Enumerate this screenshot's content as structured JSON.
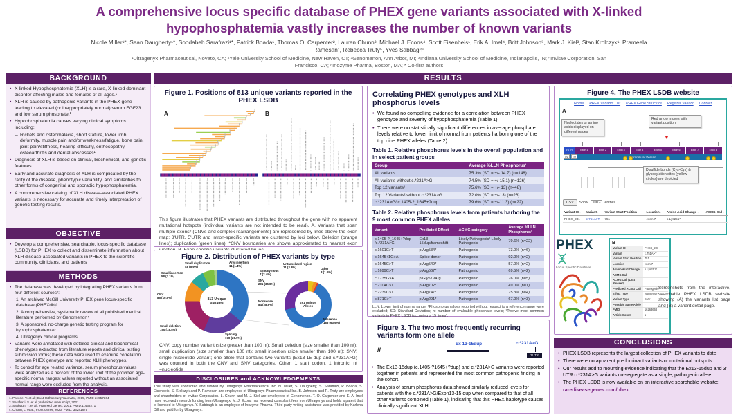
{
  "header": {
    "title": "A comprehensive locus specific database of PHEX gene variants associated with X-linked\nhypophosphatemia vastly increases the number of known variants",
    "authors": "Nicole Miller¹*, Sean Daugherty¹*, Soodabeh Sarafrazi¹*, Patrick Boada¹, Thomas O. Carpenter², Lauren Chunn³, Michael J. Econs⁴, Scott Eisenbeis¹, Erik A. Imel⁴, Britt Johnson⁵, Mark J. Kiel³, Stan Krolczyk¹, Prameela Ramesan¹, Rebecca Truty⁵, Yves Sabbagh⁶",
    "affiliations": "¹Ultragenyx Pharmaceutical, Novato, CA; ²Yale University School of Medicine, New Haven, CT; ³Genomenon, Ann Arbor, MI; ⁴Indiana University School of Medicine, Indianapolis, IN; ⁵Invitae Corporation, San Francisco, CA; ⁶Inozyme Pharma, Boston, MA; * Co-first authors"
  },
  "results_header": "RESULTS",
  "background": {
    "header": "BACKGROUND",
    "items": [
      {
        "style": "bullet",
        "text": "X-linked Hypophosphatemia (XLH) is a rare, X-linked dominant disorder affecting males and females of all ages.¹"
      },
      {
        "style": "bullet",
        "text": "XLH is caused by pathogenic variants in the PHEX gene leading to elevated (or inappropriately normal) serum FGF23 and low serum phosphate.¹"
      },
      {
        "style": "bullet",
        "text": "Hypophosphatemia causes varying clinical symptoms including:"
      },
      {
        "style": "dash",
        "text": "Rickets and osteomalacia, short stature, lower limb deformity, muscle pain and/or weakness/fatigue, bone pain, joint pain/stiffness, hearing difficulty, enthesopathy, osteoarthritis and dental abscesses¹"
      },
      {
        "style": "bullet",
        "text": "Diagnosis of XLH is based on clinical, biochemical, and genetic features."
      },
      {
        "style": "bullet",
        "text": "Early and accurate diagnosis of XLH is complicated by the rarity of the disease, phenotypic variability, and similarities to other forms of congenital and sporadic hypophosphatemia."
      },
      {
        "style": "bullet",
        "text": "A comprehensive catalog of XLH disease-associated PHEX variants is necessary for accurate and timely interpretation of genetic testing results."
      }
    ]
  },
  "objective": {
    "header": "OBJECTIVE",
    "items": [
      {
        "style": "bullet",
        "text": "Develop a comprehensive, searchable, locus-specific database (LSDB) for PHEX to collect and disseminate information about XLH disease-associated variants in PHEX to the scientific community, clinicians, and patients"
      }
    ]
  },
  "methods": {
    "header": "METHODS",
    "items": [
      {
        "style": "bullet",
        "text": "The database was developed by integrating PHEX variants from four different sources²:"
      },
      {
        "style": "num",
        "text": "1. An archived McGill University PHEX gene locus-specific database (PHEXdb)³"
      },
      {
        "style": "num",
        "text": "2. A comprehensive, systematic review of all published medical literature performed by Genomenon⁴"
      },
      {
        "style": "num",
        "text": "3. A sponsored, no-charge genetic testing program for hypophosphatemia⁵"
      },
      {
        "style": "num",
        "text": "4. Ultragenyx clinical programs"
      },
      {
        "style": "bullet",
        "text": "Variants were annotated with detailed clinical and biochemical phenotypes extracted from literature reports and clinical testing submission forms; these data were used to examine correlation between PHEX genotype and reported XLH phenotypes."
      },
      {
        "style": "bullet",
        "text": "To control for age related variance, serum phosphorus values were analyzed as a percent of the lower limit of the provided age-specific normal ranges; values reported without an associated normal range were excluded from the analysis."
      }
    ]
  },
  "references": {
    "header": "REFERENCES",
    "items": [
      {
        "style": "ref",
        "text": "1.  Pavone, V. et al.; EurJ OrthopSurgTraumatol, 2015, PMID 24957364"
      },
      {
        "style": "ref",
        "text": "2.  Sarafrazi, S. et al.; submitted manuscript, 2021."
      },
      {
        "style": "ref",
        "text": "3.  Sabbagh, Y. et al.; Hum Mol Genet., 2001, PMID:11468271"
      },
      {
        "style": "ref",
        "text": "4.  Chunn, L. et al.; Front Genet, 2020, PMID: 33281875"
      },
      {
        "style": "ref",
        "text": "5.  Rush, E. et al.; submitted manuscript 2021."
      }
    ]
  },
  "figure1": {
    "title": "Figure 1. Positions of 813 unique variants reported in the PHEX LSDB",
    "panel_a_label": "A",
    "panel_b_label": "B",
    "caption": "This figure illustrates that PHEX variants are distributed throughout the gene with no apparent mutational hotspots (individual variants are not intended to be read). A. Variants that span multiple exons* (CNVs and complex rearrangements) are represented by lines above the exon map; 3'UTR, 5'UTR and intron-specific variants are clustered by loci below. Deletion (orange lines); duplication (green lines). *CNV boundaries are shown approximated to nearest exon junction. B. Exon-specific variants clustered by loci."
  },
  "figure2": {
    "title": "Figure 2. Distribution of PHEX variants by type",
    "caption": "CNV: copy number variant (size greater than 100 nt); Small deletion (size smaller than 100 nt); small duplication (size smaller than 100 nt); small insertion (size smaller than 100 nt); SNV: single nucleotide variant; one allele that contains two variants (Ex13-15 dup and c.*231A>G) was counted in both the CNV and SNV categories. Other: 1 start codon, 1 intronic. nt =nucleotide"
  },
  "chart_data": [
    {
      "type": "pie",
      "title": "Distribution of PHEX variants by type",
      "center_label": "813 Unique\nVariants",
      "total": 813,
      "legend_position": "around",
      "slices": [
        {
          "label": "SNV",
          "value": 291,
          "pct": "35.8%",
          "color": "#2e75c3"
        },
        {
          "label": "Splicing",
          "value": 170,
          "pct": "20.9%",
          "color": "#5f3d9e"
        },
        {
          "label": "Small deletion",
          "value": 150,
          "pct": "18.4%",
          "color": "#9e2063"
        },
        {
          "label": "CNV",
          "value": 85,
          "pct": "10.5%",
          "color": "#f29322"
        },
        {
          "label": "Small insertion",
          "value": 58,
          "pct": "7.1%",
          "color": "#2aa8a0"
        },
        {
          "label": "Small duplication",
          "value": 48,
          "pct": "5.9%",
          "color": "#7dc242"
        },
        {
          "label": "Any insertion",
          "value": 11,
          "pct": "1.4%",
          "color": "#a8d08d"
        }
      ]
    },
    {
      "type": "pie",
      "title": "Coding effect of SNVs",
      "center_label": "291 Unique\nAlleles",
      "total": 291,
      "legend_position": "around",
      "slices": [
        {
          "label": "Untranslated region",
          "value": 11,
          "pct": "3.8%",
          "color": "#e8c21a"
        },
        {
          "label": "Synonymous",
          "value": 7,
          "pct": "2.4%",
          "color": "#f29322"
        },
        {
          "label": "Other",
          "value": 3,
          "pct": "1.0%",
          "color": "#d93a3a"
        },
        {
          "label": "Missense",
          "value": 186,
          "pct": "63.9%",
          "color": "#2e75c3"
        },
        {
          "label": "Nonsense",
          "value": 84,
          "pct": "28.9%",
          "color": "#6a2d9e"
        }
      ]
    }
  ],
  "correlating": {
    "title": "Correlating PHEX genotypes and XLH phosphorus levels",
    "bullets": [
      {
        "style": "bullet",
        "text": "We found no compelling evidence for a correlation between PHEX genotype and severity of hypophosphatemia (Table 1)."
      },
      {
        "style": "bullet",
        "text": "There were no statistically significant differences in average phosphate levels relative to lower limit of normal from patients harboring one of the top nine PHEX alleles (Table 2)."
      }
    ],
    "table1": {
      "title": "Table 1. Relative phosphorus levels in the overall population and in select patient groups",
      "headers": [
        "Group",
        "Average %LLN Phosphorus¹"
      ],
      "rows": [
        [
          "All variants",
          "75.3% (SD = +/- 14.7) (n=148)"
        ],
        [
          "All variants without c.*231A>G",
          "74.5% (SD = +/-15.1) (n=126)"
        ],
        [
          "Top 12 variants²",
          "75.6% (SD = +/- 13) (n=48)"
        ],
        [
          "Top 12 Variants² without c.*231A>G",
          "72.0% (SD = +/-13) (n=26)"
        ],
        [
          "c.*231A>G/ c.1405-?_1645+?dup",
          "79.6% (SD = +/-11.3) (n=22)"
        ]
      ]
    },
    "table2": {
      "title": "Table 2. Relative phosphorus levels from patients harboring the 9 most common PHEX alleles",
      "headers": [
        "Variant",
        "Predicted Effect",
        "ACMG category",
        "Average %LLN Phosphorus¹"
      ],
      "rows": [
        [
          "c.1405-?_1645+?dup /c.*231A>G",
          "Ex13-15dup/frameshift",
          "Likely Pathogenic/ Likely Pathogenic",
          "79.6% (n=22)"
        ],
        [
          "c.1601C>T",
          "p.Arg534*",
          "Pathogenic",
          "73.0% (n=6)"
        ],
        [
          "c.1645+1G>A",
          "Splice donor",
          "Pathogenic",
          "92.0% (n=2)"
        ],
        [
          "c.1645C>T",
          "p.Arg549*",
          "Pathogenic",
          "57.0% (n=2)"
        ],
        [
          "c.1699C>T",
          "p.Arg567*",
          "Pathogenic",
          "69.5% (n=2)"
        ],
        [
          "c.1735G>A",
          "p.Gly579Arg",
          "Pathogenic",
          "76.0% (n=5)"
        ],
        [
          "c.2104C>T",
          "p.Arg702*",
          "Pathogenic",
          "49.0% (n=1)"
        ],
        [
          "c.2239C>T",
          "p.Arg747*",
          "Pathogenic",
          "75.3% (n=4)"
        ],
        [
          "c.871C>T",
          "p.Arg291*",
          "Pathogenic",
          "67.0% (n=3)"
        ]
      ]
    },
    "footnote": "LLN: Lower limit of normal range; ¹Phosphorus values reported without respect to a reference range were excluded; SD: Standard Deviation; n: number of evaluable phosphate levels; ²Twelve most common variants in PHEX LSDB (occurring ≥ 15 times)."
  },
  "figure3": {
    "title": "Figure 3. The two most frequently recurring variants form one allele",
    "diagram": {
      "break_label": "//",
      "dup_label": "Ex 13-15dup",
      "snv_label": "c.*231A>G",
      "utr_label": "3'UTR"
    },
    "bullets": [
      {
        "style": "bullet",
        "text": "The Ex13-15dup (c.1405-?1645+?dup) and c.*231A>G variants were reported together in patients and represented the most common pathogenic finding in the cohort."
      },
      {
        "style": "bullet",
        "text": "Analysis of serum phosphorus data showed similarly reduced levels for patients with the c.*231A>G/Exon13-15 dup when compared to that of all other variants combined (Table 1), indicating that this PHEX haplotype causes clinically significant XLH."
      }
    ]
  },
  "figure4": {
    "title": "Figure 4. The PHEX LSDB website",
    "panel_a_label": "A",
    "panel_b_label": "B",
    "website": {
      "nav": [
        "Home",
        "PHEX Variants List",
        "PHEX Gene Structure",
        "Register Variant",
        "Contact"
      ],
      "callout_nucleotides": "Nucleotides or amino acids displayed on different pages",
      "callout_red_arrow": "Red arrow moves with variant position",
      "callout_disulfide": "Disulfide bonds (Cys-Cys) & glycosylation sites (yellow circles) are depicted",
      "utr5_label": "5'UTR",
      "exons": [
        "Exon 1",
        "Exon 2",
        "Exon 3",
        "Exon 4",
        "Exon 5",
        "Exon 6",
        "Exon 7",
        "Exon 8"
      ],
      "cyt_label": "Cyt",
      "tm_label": "TM",
      "domain_label": "Extracellular Domain",
      "csv_button": "CSV",
      "show_label": "Show",
      "entries_value": "100",
      "entries_label": "entries",
      "table": {
        "headers": [
          "Variant ID",
          "Variant",
          "Variant Start Position",
          "Location",
          "Amino Acid Change",
          "ACMG Call"
        ],
        "rows": [
          [
            "PHEX_231",
            "c.751A>T",
            "751",
            "exon 7",
            "p.Lys251*",
            "-"
          ]
        ]
      }
    },
    "logo": {
      "text": "PHEX",
      "subtext": "Locus Specific Database"
    },
    "detail": {
      "rows": [
        [
          "Variant ID",
          "PHEX_231"
        ],
        [
          "Variant",
          "c.751A>T"
        ],
        [
          "Variant Start Position",
          "751"
        ],
        [
          "Location",
          "exon 7"
        ],
        [
          "Amino Acid Change",
          "p.Lys251*"
        ],
        [
          "ACMG Call",
          "-"
        ],
        [
          "ACMG Call (Last Revised)",
          "-"
        ],
        [
          "Predicted ACMG Call",
          "Pathogenic"
        ],
        [
          "Effect Type",
          "Nonsense"
        ],
        [
          "Variant Type",
          "SNV"
        ],
        [
          "Possible Same Allele",
          "-"
        ],
        [
          "PMID",
          "16263668"
        ],
        [
          "Article Count",
          "1"
        ]
      ]
    },
    "caption": "Screenshots from the interactive, searchable PHEX LSDB website showing (A) the variants list page and (B) a variant detail page."
  },
  "conclusions": {
    "header": "CONCLUSIONS",
    "bullets": [
      {
        "style": "bullet",
        "text": "PHEX LSDB represents the largest collection of PHEX variants to date"
      },
      {
        "style": "bullet",
        "text": "There were no apparent predominant variants or mutational hotspots"
      },
      {
        "style": "bullet",
        "text": "Our results add to mounting evidence indicating that the Ex13-15dup and 3' UTR c.*231A>G variants co-segregate as a single, pathogenic allele"
      },
      {
        "style": "bullet",
        "text": "The PHEX LSDB is now available on an interactive searchable website:"
      }
    ],
    "link": "rarediseasegenes.com/phex"
  },
  "disclosures": {
    "header": "DISCLOSURES and ACKNOWLEDGEMENTS",
    "text": "This study was sponsored and funded by Ultragenyx Pharmaceutical Inc. N. Miller, S. Daugherty, S. Sarafrazi, P. Boada, S. Eisenbeis, S. Krolczyk and P. Ramesan are employees of Ultragenyx Pharmaceutical Inc. B. Johnson and R. Truty are employees and shareholders of Invitae Corporation. L. Chunn and M. J. Kiel are employees of Genomenon. T. O. Carpenter and E. A. Imel have received research funding from Ultragenyx. M. J. Econs has received consultant fees from Ultragenyx and holds a patent that is licensed to Ultragenyx. Y. Sabbagh is an employee of Inozyme Pharma. Third-party writing assistance was provided by Karlena Dill and paid for by Ultragenyx."
  }
}
